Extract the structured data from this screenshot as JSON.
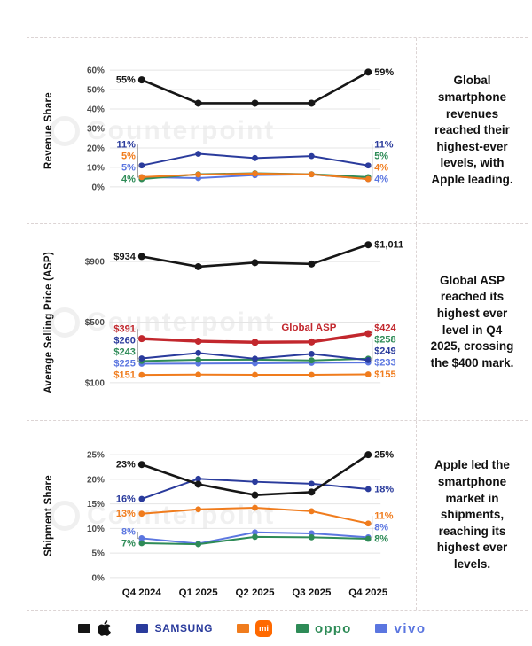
{
  "watermark": "Counterpoint",
  "colors": {
    "apple": "#161616",
    "samsung": "#2a3b9c",
    "mi": "#f07c1d",
    "mi_badge": "#ff6900",
    "oppo": "#2e8b57",
    "vivo": "#5b76e0",
    "global_asp": "#c2272d",
    "gridline": "#e4e4e4",
    "tick": "#4a4a4a",
    "leader": "#9b9b9b"
  },
  "categories": [
    "Q4 2024",
    "Q1 2025",
    "Q2 2025",
    "Q3 2025",
    "Q4 2025"
  ],
  "legend": [
    {
      "key": "apple",
      "label": "Apple"
    },
    {
      "key": "samsung",
      "label": "SAMSUNG"
    },
    {
      "key": "mi",
      "label": "mi"
    },
    {
      "key": "oppo",
      "label": "oppo"
    },
    {
      "key": "vivo",
      "label": "vivo"
    }
  ],
  "chart_data": [
    {
      "type": "line",
      "ylabel": "Revenue Share",
      "caption": "Global smartphone revenues reached their highest-ever levels, with Apple leading.",
      "ylim": [
        0,
        65
      ],
      "grid": "on",
      "show_x_labels": false,
      "gridlines": [
        {
          "v": 0,
          "label": "0%"
        },
        {
          "v": 10,
          "label": "10%"
        },
        {
          "v": 20,
          "label": "20%"
        },
        {
          "v": 30,
          "label": "30%"
        },
        {
          "v": 40,
          "label": "40%"
        },
        {
          "v": 50,
          "label": "50%"
        },
        {
          "v": 60,
          "label": "60%"
        }
      ],
      "series": [
        {
          "key": "apple",
          "name": "Apple",
          "values": [
            55,
            43,
            43,
            43,
            59
          ],
          "start_label": "55%",
          "end_label": "59%"
        },
        {
          "key": "samsung",
          "name": "Samsung",
          "values": [
            11,
            17,
            14.8,
            15.8,
            11
          ],
          "start_label": "11%",
          "end_label": "11%"
        },
        {
          "key": "mi",
          "name": "Xiaomi",
          "values": [
            5,
            6.3,
            6.8,
            6.4,
            4
          ],
          "start_label": "5%",
          "end_label": "4%"
        },
        {
          "key": "oppo",
          "name": "OPPO",
          "values": [
            4,
            6.5,
            7,
            6.5,
            5
          ],
          "start_label": "4%",
          "end_label": "5%"
        },
        {
          "key": "vivo",
          "name": "vivo",
          "values": [
            5,
            4.5,
            6,
            6.4,
            4
          ],
          "start_label": "5%",
          "end_label": "4%"
        }
      ]
    },
    {
      "type": "line",
      "ylabel": "Average Selling Price (ASP)",
      "caption": "Global ASP reached its highest ever level in Q4 2025, crossing the $400 mark.",
      "ylim": [
        60,
        1120
      ],
      "grid": "on",
      "show_x_labels": false,
      "annotation": {
        "text": "Global ASP",
        "key": "global_asp"
      },
      "gridlines": [
        {
          "v": 100,
          "label": "$100"
        },
        {
          "v": 500,
          "label": "$500"
        },
        {
          "v": 900,
          "label": "$900"
        }
      ],
      "series": [
        {
          "key": "apple",
          "name": "Apple",
          "values": [
            934,
            866,
            893,
            884,
            1011
          ],
          "start_label": "$934",
          "end_label": "$1,011"
        },
        {
          "key": "global_asp",
          "name": "Global ASP",
          "values": [
            391,
            374,
            367,
            369,
            424
          ],
          "start_label": "$391",
          "end_label": "$424"
        },
        {
          "key": "samsung",
          "name": "Samsung",
          "values": [
            260,
            296,
            258,
            290,
            249
          ],
          "start_label": "$260",
          "end_label": "$249"
        },
        {
          "key": "oppo",
          "name": "OPPO",
          "values": [
            243,
            251,
            252,
            247,
            258
          ],
          "start_label": "$243",
          "end_label": "$258"
        },
        {
          "key": "vivo",
          "name": "vivo",
          "values": [
            225,
            226,
            228,
            231,
            233
          ],
          "start_label": "$225",
          "end_label": "$233"
        },
        {
          "key": "mi",
          "name": "Xiaomi",
          "values": [
            151,
            153,
            152,
            152,
            155
          ],
          "start_label": "$151",
          "end_label": "$155"
        }
      ]
    },
    {
      "type": "line",
      "ylabel": "Shipment Share",
      "caption": "Apple led the smartphone market in shipments, reaching its highest ever levels.",
      "ylim": [
        0,
        27
      ],
      "grid": "on",
      "show_x_labels": true,
      "gridlines": [
        {
          "v": 0,
          "label": "0%"
        },
        {
          "v": 5,
          "label": "5%"
        },
        {
          "v": 10,
          "label": "10%"
        },
        {
          "v": 15,
          "label": "15%"
        },
        {
          "v": 20,
          "label": "20%"
        },
        {
          "v": 25,
          "label": "25%"
        }
      ],
      "series": [
        {
          "key": "apple",
          "name": "Apple",
          "values": [
            23,
            19,
            16.8,
            17.4,
            25
          ],
          "start_label": "23%",
          "end_label": "25%"
        },
        {
          "key": "samsung",
          "name": "Samsung",
          "values": [
            16,
            20.1,
            19.5,
            19.1,
            18
          ],
          "start_label": "16%",
          "end_label": "18%"
        },
        {
          "key": "mi",
          "name": "Xiaomi",
          "values": [
            13,
            13.9,
            14.2,
            13.5,
            11
          ],
          "start_label": "13%",
          "end_label": "11%"
        },
        {
          "key": "oppo",
          "name": "OPPO",
          "values": [
            7,
            6.8,
            8.3,
            8.2,
            7.9
          ],
          "start_label": "7%",
          "end_label": "8%"
        },
        {
          "key": "vivo",
          "name": "vivo",
          "values": [
            8,
            6.9,
            9.2,
            9,
            8.2
          ],
          "start_label": "8%",
          "end_label": "8%"
        }
      ]
    }
  ]
}
